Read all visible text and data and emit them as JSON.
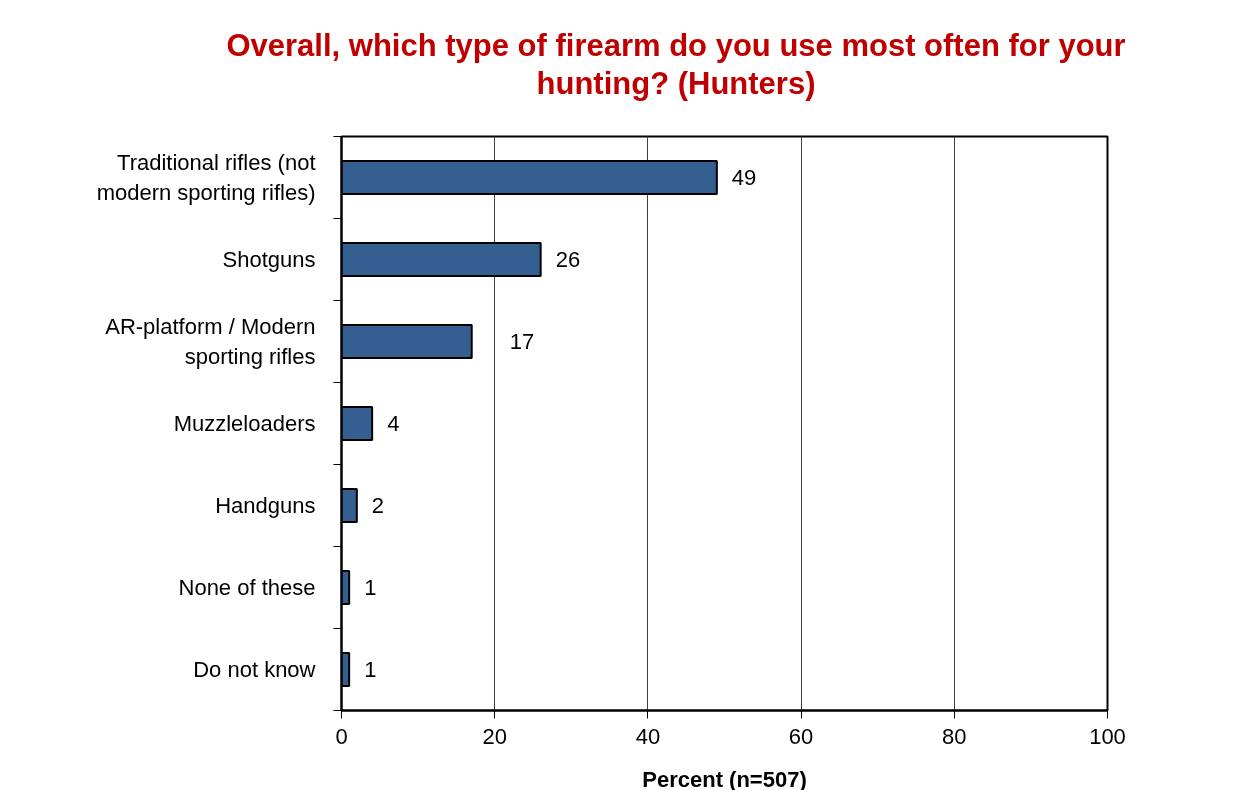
{
  "chart_data": {
    "type": "bar",
    "orientation": "horizontal",
    "title": "Overall, which type of firearm do you use most often for your hunting? (Hunters)",
    "xlabel": "Percent (n=507)",
    "categories": [
      "Traditional rifles (not modern sporting rifles)",
      "Shotguns",
      "AR-platform / Modern sporting rifles",
      "Muzzleloaders",
      "Handguns",
      "None of these",
      "Do not know"
    ],
    "values": [
      49,
      26,
      17,
      4,
      2,
      1,
      1
    ],
    "color": "#365f91",
    "xlim": [
      0,
      100
    ],
    "xticks": [
      0,
      20,
      40,
      60,
      80,
      100
    ],
    "grid": "x",
    "data_labels": true
  }
}
